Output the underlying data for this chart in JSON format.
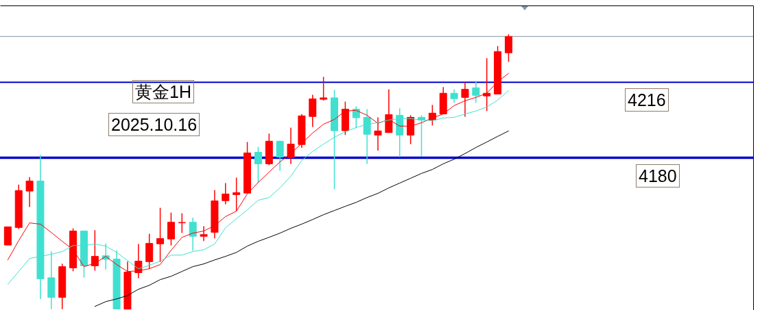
{
  "chart_data": {
    "type": "candlestick",
    "title": "黄金1H",
    "annotations": [
      "2025.10.16"
    ],
    "categories": [
      null,
      null,
      null,
      null,
      null,
      null,
      null,
      null,
      null,
      null,
      null,
      null,
      null,
      null,
      null,
      null,
      null,
      null,
      null,
      null,
      null,
      null,
      null,
      null,
      null,
      null,
      null,
      null,
      null,
      null,
      null,
      null,
      null,
      null,
      null,
      null,
      null,
      null,
      null,
      null,
      null,
      null,
      null,
      null,
      null,
      null,
      null
    ],
    "ohlc": [
      [
        4138.3,
        4147.0,
        4138.3,
        4147.0
      ],
      [
        4146.7,
        4167.2,
        4146.0,
        4164.3
      ],
      [
        4164.1,
        4170.8,
        4156.5,
        4168.9
      ],
      [
        4168.9,
        4181.3,
        4112.5,
        4122.2
      ],
      [
        4122.7,
        4135.3,
        4107.7,
        4113.3
      ],
      [
        4113.3,
        4129.4,
        4107.7,
        4128.0
      ],
      [
        4127.4,
        4146.3,
        4125.8,
        4145.0
      ],
      [
        4145.0,
        4145.0,
        4122.8,
        4128.4
      ],
      [
        4128.4,
        4145.4,
        4126.1,
        4132.9
      ],
      [
        4133.2,
        4139.1,
        4126.7,
        4131.5
      ],
      [
        4131.6,
        4135.8,
        4107.7,
        4107.8
      ],
      [
        4107.7,
        4130.4,
        4107.7,
        4125.4
      ],
      [
        4125.1,
        4138.8,
        4122.5,
        4130.6
      ],
      [
        4130.4,
        4143.7,
        4126.9,
        4139.1
      ],
      [
        4138.9,
        4156.1,
        4130.2,
        4141.4
      ],
      [
        4141.2,
        4153.8,
        4138.1,
        4149.2
      ],
      [
        4148.9,
        4153.5,
        4144.1,
        4149.1
      ],
      [
        4149.2,
        4151.4,
        4135.6,
        4142.5
      ],
      [
        4142.5,
        4147.3,
        4140.2,
        4143.3
      ],
      [
        4144.4,
        4164.6,
        4141.5,
        4159.4
      ],
      [
        4159.5,
        4167.9,
        4157.8,
        4162.7
      ],
      [
        4162.4,
        4170.5,
        4154.6,
        4163.3
      ],
      [
        4163.1,
        4187.5,
        4163.1,
        4182.3
      ],
      [
        4182.6,
        4185.2,
        4167.9,
        4177.1
      ],
      [
        4177.1,
        4191.5,
        4176.5,
        4187.9
      ],
      [
        4187.9,
        4188.2,
        4173.8,
        4180.3
      ],
      [
        4180.1,
        4194.4,
        4177.1,
        4186.5
      ],
      [
        4186.3,
        4200.8,
        4184.7,
        4200.0
      ],
      [
        4199.7,
        4210.1,
        4194.7,
        4208.1
      ],
      [
        4207.9,
        4218.6,
        4207.3,
        4208.6
      ],
      [
        4208.6,
        4212.4,
        4165.0,
        4192.9
      ],
      [
        4192.9,
        4206.8,
        4190.9,
        4203.2
      ],
      [
        4203.2,
        4204.5,
        4194.1,
        4199.1
      ],
      [
        4199.3,
        4203.2,
        4177.1,
        4191.2
      ],
      [
        4190.8,
        4199.3,
        4183.4,
        4192.8
      ],
      [
        4192.0,
        4212.7,
        4192.0,
        4200.6
      ],
      [
        4200.3,
        4203.6,
        4180.3,
        4190.8
      ],
      [
        4190.8,
        4200.3,
        4186.5,
        4199.3
      ],
      [
        4199.3,
        4200.3,
        4180.5,
        4198.0
      ],
      [
        4198.0,
        4205.2,
        4195.4,
        4201.3
      ],
      [
        4200.9,
        4213.7,
        4200.9,
        4210.8
      ],
      [
        4210.8,
        4212.7,
        4206.2,
        4208.2
      ],
      [
        4208.8,
        4216.0,
        4199.6,
        4212.7
      ],
      [
        4213.4,
        4216.7,
        4206.2,
        4209.8
      ],
      [
        4209.5,
        4227.5,
        4202.3,
        4210.8
      ],
      [
        4210.4,
        4233.3,
        4210.4,
        4230.7
      ],
      [
        4230.1,
        4238.9,
        4225.8,
        4237.9
      ]
    ],
    "colors": [
      "#ff0000",
      "#ff0000",
      "#ff0000",
      "#40e0d0",
      "#40e0d0",
      "#ff0000",
      "#ff0000",
      "#40e0d0",
      "#ff0000",
      "#40e0d0",
      "#40e0d0",
      "#ff0000",
      "#ff0000",
      "#ff0000",
      "#ff0000",
      "#ff0000",
      "#ff0000",
      "#40e0d0",
      "#ff0000",
      "#ff0000",
      "#ff0000",
      "#ff0000",
      "#ff0000",
      "#40e0d0",
      "#ff0000",
      "#40e0d0",
      "#ff0000",
      "#ff0000",
      "#ff0000",
      "#ff0000",
      "#40e0d0",
      "#ff0000",
      "#40e0d0",
      "#40e0d0",
      "#ff0000",
      "#ff0000",
      "#40e0d0",
      "#ff0000",
      "#40e0d0",
      "#ff0000",
      "#ff0000",
      "#40e0d0",
      "#ff0000",
      "#40e0d0",
      "#ff0000",
      "#ff0000",
      "#ff0000"
    ],
    "series": [
      {
        "type": "line",
        "color": "#ff0000",
        "values": [
          4131.2,
          4140.4,
          4148.9,
          4148.3,
          4144.3,
          4140.1,
          4136.1,
          4128.0,
          4129.6,
          4132.9,
          4129.0,
          4125.7,
          4126.0,
          4127.0,
          4129.0,
          4135.8,
          4142.0,
          4144.0,
          4145.0,
          4147.6,
          4151.9,
          4154.5,
          4162.7,
          4168.2,
          4173.1,
          4178.0,
          4182.0,
          4186.9,
          4191.8,
          4196.0,
          4198.3,
          4202.3,
          4202.6,
          4200.3,
          4196.4,
          4198.3,
          4195.1,
          4195.1,
          4196.7,
          4199.0,
          4200.9,
          4204.9,
          4207.2,
          4208.8,
          4210.8,
          4216.3,
          4220.3
        ]
      },
      {
        "type": "line",
        "color": "#40e0d0",
        "values": [
          4119.5,
          4125.7,
          4131.9,
          4132.9,
          4133.9,
          4135.2,
          4138.1,
          4138.1,
          4138.8,
          4137.8,
          4134.8,
          4130.9,
          4127.0,
          4128.6,
          4130.6,
          4133.5,
          4133.5,
          4135.2,
          4136.1,
          4138.8,
          4146.6,
          4150.9,
          4155.1,
          4159.7,
          4161.0,
          4165.6,
          4171.2,
          4178.7,
          4183.0,
          4186.5,
          4189.8,
          4192.4,
          4194.4,
          4196.0,
          4196.7,
          4198.0,
          4198.7,
          4198.7,
          4198.0,
          4197.7,
          4199.0,
          4199.3,
          4200.9,
          4202.3,
          4204.2,
          4207.5,
          4212.1
        ]
      },
      {
        "type": "line",
        "color": "#000000",
        "values": [
          null,
          null,
          null,
          null,
          null,
          null,
          null,
          null,
          4109.0,
          4111.3,
          4112.6,
          4114.2,
          4117.2,
          4119.1,
          4121.8,
          4123.4,
          4125.7,
          4128.0,
          4129.3,
          4131.2,
          4132.9,
          4134.8,
          4137.8,
          4140.1,
          4142.0,
          4144.0,
          4146.3,
          4148.3,
          4150.5,
          4152.8,
          4154.8,
          4156.8,
          4158.7,
          4161.0,
          4163.0,
          4165.6,
          4167.9,
          4170.2,
          4172.5,
          4174.4,
          4177.1,
          4179.3,
          4182.0,
          4184.9,
          4187.5,
          4190.2,
          4192.8
        ]
      }
    ],
    "ylim": [
      4107.3,
      4252.7
    ],
    "ref_lines": [
      {
        "axis": "y",
        "value": 4216,
        "label": "4216",
        "color": "#0000cd"
      },
      {
        "axis": "y",
        "value": 4180,
        "label": "4180",
        "color": "#0000cd"
      },
      {
        "axis": "y",
        "value": 4237.9,
        "color": "#8494a4"
      }
    ]
  }
}
